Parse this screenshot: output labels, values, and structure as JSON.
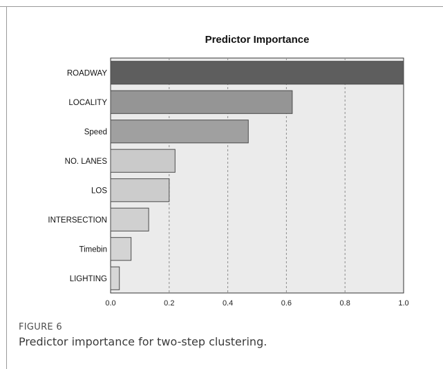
{
  "figure": {
    "label": "FIGURE 6",
    "caption": "Predictor importance for two-step clustering."
  },
  "chart_data": {
    "type": "bar",
    "orientation": "horizontal",
    "title": "Predictor Importance",
    "xlabel": "",
    "ylabel": "",
    "xlim": [
      0,
      1
    ],
    "x_ticks": [
      "0.0",
      "0.2",
      "0.4",
      "0.6",
      "0.8",
      "1.0"
    ],
    "grid": "vertical dashed",
    "legend": "none",
    "categories": [
      "ROADWAY",
      "LOCALITY",
      "Speed",
      "NO. LANES",
      "LOS",
      "INTERSECTION",
      "Timebin",
      "LIGHTING"
    ],
    "values": [
      1.0,
      0.62,
      0.47,
      0.22,
      0.2,
      0.13,
      0.07,
      0.03
    ],
    "bar_colors": [
      "#5e5e5e",
      "#959595",
      "#a0a0a0",
      "#cacaca",
      "#cccccc",
      "#d0d0d0",
      "#d4d4d4",
      "#d6d6d6"
    ],
    "plot_background": "#ebebeb"
  }
}
